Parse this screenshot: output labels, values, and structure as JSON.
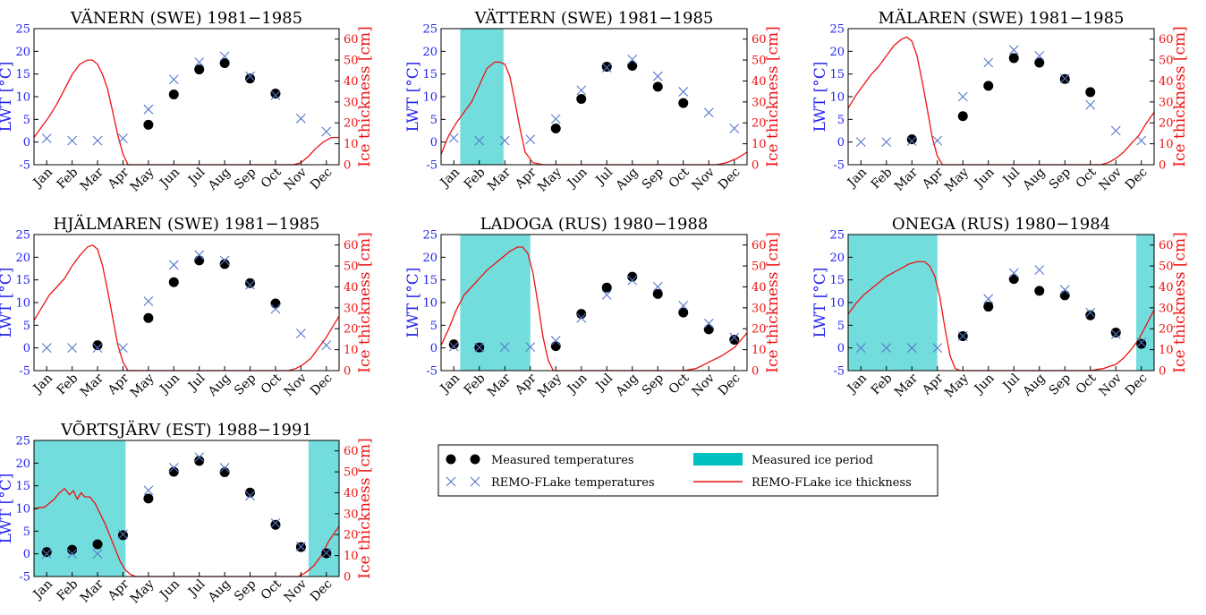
{
  "chart_data": [
    {
      "type": "scatter",
      "title": "VÄNERN (SWE) 1981−1985",
      "ylabel": "LWT [°C]",
      "ylabel_right": "Ice thickness [cm]",
      "ylim": [
        -5,
        25
      ],
      "ylim_right": [
        0,
        65
      ],
      "categories": [
        "Jan",
        "Feb",
        "Mar",
        "Apr",
        "May",
        "Jun",
        "Jul",
        "Aug",
        "Sep",
        "Oct",
        "Nov",
        "Dec"
      ],
      "ice_period": [],
      "series": [
        {
          "name": "Measured temperatures",
          "values": [
            null,
            null,
            null,
            null,
            3.8,
            10.5,
            16.0,
            17.4,
            14.0,
            10.7,
            null,
            null
          ]
        },
        {
          "name": "REMO-FLake temperatures",
          "values": [
            0.8,
            0.3,
            0.3,
            0.8,
            7.2,
            13.8,
            17.6,
            18.9,
            14.5,
            10.3,
            5.2,
            2.3
          ]
        },
        {
          "name": "REMO-FLake ice thickness",
          "x": [
            0,
            0.3,
            0.6,
            0.9,
            1.2,
            1.5,
            1.8,
            2.1,
            2.3,
            2.5,
            2.7,
            2.9,
            3.1,
            3.3,
            3.5,
            3.7,
            10.2,
            10.5,
            10.8,
            11.1,
            11.4,
            11.7,
            12
          ],
          "values": [
            13,
            18,
            23,
            29,
            36,
            43,
            48,
            50,
            50,
            48,
            43,
            36,
            25,
            14,
            5,
            0,
            0,
            1,
            4,
            8,
            11,
            13,
            13
          ]
        }
      ]
    },
    {
      "type": "scatter",
      "title": "VÄTTERN (SWE) 1981−1985",
      "ylabel": "LWT [°C]",
      "ylabel_right": "Ice thickness [cm]",
      "ylim": [
        -5,
        25
      ],
      "ylim_right": [
        0,
        65
      ],
      "categories": [
        "Jan",
        "Feb",
        "Mar",
        "Apr",
        "May",
        "Jun",
        "Jul",
        "Aug",
        "Sep",
        "Oct",
        "Nov",
        "Dec"
      ],
      "ice_period": [
        [
          0.75,
          2.45
        ]
      ],
      "series": [
        {
          "name": "Measured temperatures",
          "values": [
            null,
            null,
            null,
            null,
            3.0,
            9.5,
            16.6,
            16.8,
            12.2,
            8.6,
            null,
            null
          ]
        },
        {
          "name": "REMO-FLake temperatures",
          "values": [
            0.9,
            0.3,
            0.3,
            0.6,
            5.1,
            11.4,
            16.4,
            18.2,
            14.5,
            11.1,
            6.5,
            3.0
          ]
        },
        {
          "name": "REMO-FLake ice thickness",
          "x": [
            0,
            0.3,
            0.6,
            0.9,
            1.2,
            1.5,
            1.8,
            2.1,
            2.3,
            2.5,
            2.7,
            2.9,
            3.1,
            3.3,
            3.6,
            4.0,
            10.8,
            11.2,
            11.6,
            12
          ],
          "values": [
            5,
            14,
            20,
            25,
            30,
            38,
            46,
            49,
            49,
            48,
            42,
            30,
            17,
            6,
            1,
            0,
            0,
            1,
            3,
            6
          ]
        }
      ]
    },
    {
      "type": "scatter",
      "title": "MÄLAREN (SWE) 1981−1985",
      "ylabel": "LWT [°C]",
      "ylabel_right": "Ice thickness [cm]",
      "ylim": [
        -5,
        25
      ],
      "ylim_right": [
        0,
        65
      ],
      "categories": [
        "Jan",
        "Feb",
        "Mar",
        "Apr",
        "May",
        "Jun",
        "Jul",
        "Aug",
        "Sep",
        "Oct",
        "Nov",
        "Dec"
      ],
      "ice_period": [],
      "series": [
        {
          "name": "Measured temperatures",
          "values": [
            null,
            null,
            0.6,
            null,
            5.7,
            12.4,
            18.5,
            17.5,
            13.9,
            11.0,
            null,
            null
          ]
        },
        {
          "name": "REMO-FLake temperatures",
          "values": [
            0.0,
            0.0,
            0.2,
            0.3,
            10.0,
            17.5,
            20.3,
            19.0,
            14.0,
            8.2,
            2.5,
            0.3
          ]
        },
        {
          "name": "REMO-FLake ice thickness",
          "x": [
            0,
            0.3,
            0.6,
            0.9,
            1.2,
            1.5,
            1.8,
            2.1,
            2.3,
            2.5,
            2.7,
            2.9,
            3.1,
            3.3,
            3.5,
            3.7,
            9.9,
            10.2,
            10.5,
            10.8,
            11.1,
            11.4,
            11.7,
            12
          ],
          "values": [
            27,
            33,
            38,
            43,
            47,
            52,
            57,
            60,
            61,
            59,
            52,
            40,
            27,
            13,
            4,
            0,
            0,
            1,
            3,
            6,
            10,
            14,
            20,
            25
          ]
        }
      ]
    },
    {
      "type": "scatter",
      "title": "HJÄLMAREN (SWE) 1981−1985",
      "ylabel": "LWT [°C]",
      "ylabel_right": "Ice thickness [cm]",
      "ylim": [
        -5,
        25
      ],
      "ylim_right": [
        0,
        65
      ],
      "categories": [
        "Jan",
        "Feb",
        "Mar",
        "Apr",
        "May",
        "Jun",
        "Jul",
        "Aug",
        "Sep",
        "Oct",
        "Nov",
        "Dec"
      ],
      "ice_period": [],
      "series": [
        {
          "name": "Measured temperatures",
          "values": [
            null,
            null,
            0.6,
            null,
            6.6,
            14.5,
            19.3,
            18.5,
            14.3,
            9.8,
            null,
            null
          ]
        },
        {
          "name": "REMO-FLake temperatures",
          "values": [
            0.0,
            0.0,
            0.0,
            0.0,
            10.3,
            18.3,
            20.5,
            19.3,
            13.9,
            8.6,
            3.2,
            0.6
          ]
        },
        {
          "name": "REMO-FLake ice thickness",
          "x": [
            0,
            0.3,
            0.6,
            0.9,
            1.2,
            1.5,
            1.8,
            2.1,
            2.3,
            2.5,
            2.7,
            2.9,
            3.1,
            3.3,
            3.5,
            3.7,
            10.0,
            10.3,
            10.6,
            10.9,
            11.2,
            11.5,
            11.8,
            12
          ],
          "values": [
            24,
            30,
            36,
            40,
            44,
            50,
            55,
            59,
            60,
            58,
            50,
            38,
            25,
            12,
            4,
            0,
            0,
            1,
            3,
            6,
            11,
            16,
            22,
            26
          ]
        }
      ]
    },
    {
      "type": "scatter",
      "title": "LADOGA (RUS) 1980−1988",
      "ylabel": "LWT [°C]",
      "ylabel_right": "Ice thickness [cm]",
      "ylim": [
        -5,
        25
      ],
      "ylim_right": [
        0,
        65
      ],
      "categories": [
        "Jan",
        "Feb",
        "Mar",
        "Apr",
        "May",
        "Jun",
        "Jul",
        "Aug",
        "Sep",
        "Oct",
        "Nov",
        "Dec"
      ],
      "ice_period": [
        [
          0.75,
          3.5
        ]
      ],
      "series": [
        {
          "name": "Measured temperatures",
          "values": [
            0.8,
            0.1,
            null,
            null,
            0.4,
            7.5,
            13.3,
            15.7,
            11.9,
            7.8,
            4.1,
            1.8
          ]
        },
        {
          "name": "REMO-FLake temperatures",
          "values": [
            0.3,
            0.1,
            0.2,
            0.2,
            1.6,
            6.6,
            11.7,
            14.9,
            13.5,
            9.3,
            5.4,
            2.3
          ]
        },
        {
          "name": "REMO-FLake ice thickness",
          "x": [
            0,
            0.3,
            0.6,
            0.9,
            1.2,
            1.5,
            1.8,
            2.1,
            2.4,
            2.7,
            3.0,
            3.2,
            3.4,
            3.6,
            3.8,
            4.0,
            4.2,
            4.4,
            9.5,
            10.0,
            10.5,
            11.0,
            11.5,
            12
          ],
          "values": [
            12,
            20,
            29,
            36,
            40,
            44,
            48,
            51,
            54,
            57,
            59,
            59,
            56,
            47,
            32,
            16,
            5,
            0,
            0,
            1,
            4,
            7,
            11,
            18
          ]
        }
      ]
    },
    {
      "type": "scatter",
      "title": "ONEGA (RUS) 1980−1984",
      "ylabel": "LWT [°C]",
      "ylabel_right": "Ice thickness [cm]",
      "ylim": [
        -5,
        25
      ],
      "ylim_right": [
        0,
        65
      ],
      "categories": [
        "Jan",
        "Feb",
        "Mar",
        "Apr",
        "May",
        "Jun",
        "Jul",
        "Aug",
        "Sep",
        "Oct",
        "Nov",
        "Dec"
      ],
      "ice_period": [
        [
          0,
          3.5
        ],
        [
          11.3,
          12
        ]
      ],
      "series": [
        {
          "name": "Measured temperatures",
          "values": [
            null,
            null,
            null,
            null,
            2.6,
            9.1,
            15.2,
            12.6,
            11.6,
            7.2,
            3.4,
            0.9
          ]
        },
        {
          "name": "REMO-FLake temperatures",
          "values": [
            0.0,
            0.0,
            0.0,
            0.0,
            2.6,
            10.8,
            16.5,
            17.2,
            12.8,
            7.8,
            3.0,
            1.2
          ]
        },
        {
          "name": "REMO-FLake ice thickness",
          "x": [
            0,
            0.3,
            0.6,
            0.9,
            1.2,
            1.5,
            1.8,
            2.1,
            2.4,
            2.7,
            3.0,
            3.2,
            3.4,
            3.6,
            3.8,
            4.0,
            4.2,
            4.4,
            9.5,
            10.0,
            10.5,
            10.8,
            11.1,
            11.4,
            11.7,
            12
          ],
          "values": [
            27,
            32,
            36,
            39,
            42,
            45,
            47,
            49,
            51,
            52,
            52,
            50,
            45,
            35,
            20,
            7,
            1,
            0,
            0,
            1,
            3,
            6,
            10,
            15,
            22,
            29
          ]
        }
      ]
    },
    {
      "type": "scatter",
      "title": "VÕRTSJÄRV (EST) 1988−1991",
      "ylabel": "LWT [°C]",
      "ylabel_right": "Ice thickness [cm]",
      "ylim": [
        -5,
        25
      ],
      "ylim_right": [
        0,
        65
      ],
      "categories": [
        "Jan",
        "Feb",
        "Mar",
        "Apr",
        "May",
        "Jun",
        "Jul",
        "Aug",
        "Sep",
        "Oct",
        "Nov",
        "Dec"
      ],
      "ice_period": [
        [
          0,
          3.6
        ],
        [
          10.8,
          12
        ]
      ],
      "series": [
        {
          "name": "Measured temperatures",
          "values": [
            0.4,
            0.9,
            2.1,
            4.1,
            12.2,
            18.1,
            20.5,
            18.0,
            13.5,
            6.4,
            1.5,
            0.1
          ]
        },
        {
          "name": "REMO-FLake temperatures",
          "values": [
            0.0,
            0.0,
            0.0,
            4.3,
            14.0,
            19.0,
            21.3,
            19.0,
            12.8,
            6.8,
            1.6,
            0.2
          ]
        },
        {
          "name": "REMO-FLake ice thickness",
          "x": [
            0,
            0.2,
            0.4,
            0.6,
            0.8,
            1.0,
            1.2,
            1.4,
            1.55,
            1.7,
            1.85,
            2.0,
            2.2,
            2.4,
            2.6,
            2.8,
            3.0,
            3.2,
            3.4,
            3.6,
            3.8,
            4.0,
            10.4,
            10.7,
            11.0,
            11.3,
            11.6,
            12
          ],
          "values": [
            32,
            33,
            33,
            35,
            37,
            40,
            42,
            39,
            41,
            37,
            40,
            38,
            38,
            35,
            30,
            25,
            19,
            13,
            7,
            3,
            1,
            0,
            0,
            2,
            5,
            10,
            17,
            24
          ]
        }
      ]
    }
  ],
  "legend": {
    "measured_temp": "Measured temperatures",
    "remo_temp": "REMO-FLake temperatures",
    "ice_period": "Measured ice period",
    "ice_thickness": "REMO-FLake ice thickness"
  },
  "colors": {
    "measured": "#000000",
    "remo": "#5577cc",
    "ice_period": "#00c0c0",
    "ice_line": "#ee1111",
    "left_axis": "#2222ee",
    "right_axis": "#ee1111"
  }
}
